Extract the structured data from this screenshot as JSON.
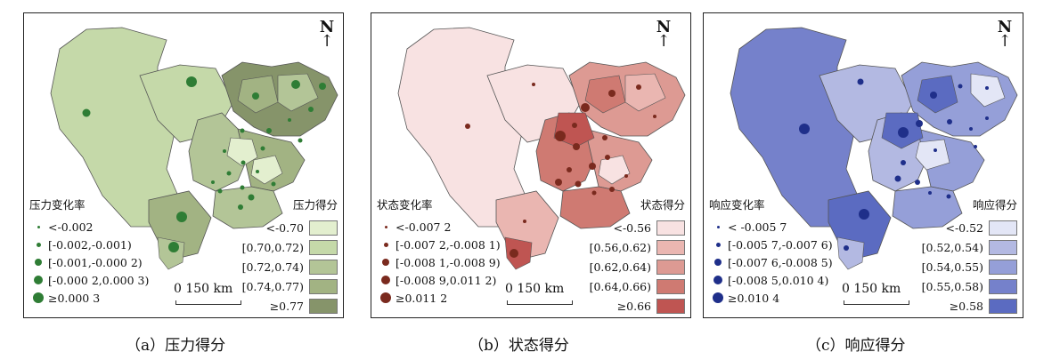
{
  "panels": [
    {
      "id": "a",
      "caption": "（a）压力得分",
      "north_label": "N",
      "scale_label": "0  150 km",
      "symbol_legend": {
        "title": "压力变化率",
        "items": [
          "<-0.002",
          "[-0.002,-0.001)",
          "[-0.001,-0.000 2)",
          "[-0.000 2,0.000 3)",
          "≥0.000 3"
        ]
      },
      "class_legend": {
        "title": "压力得分",
        "items": [
          "<-0.70",
          "[0.70,0.72)",
          "[0.72,0.74)",
          "[0.74,0.77)",
          "≥0.77"
        ],
        "colors": [
          "#e3efcf",
          "#c5d9a9",
          "#b3c597",
          "#a2b383",
          "#86946a"
        ]
      },
      "symbol_color": "#2f7d35"
    },
    {
      "id": "b",
      "caption": "（b）状态得分",
      "north_label": "N",
      "scale_label": "0  150 km",
      "symbol_legend": {
        "title": "状态变化率",
        "items": [
          "<-0.007 2",
          "[-0.007 2,-0.008 1)",
          "[-0.008 1,-0.008 9)",
          "[-0.008 9,0.011 2)",
          "≥0.011 2"
        ]
      },
      "class_legend": {
        "title": "状态得分",
        "items": [
          "<-0.56",
          "[0.56,0.62)",
          "[0.62,0.64)",
          "[0.64,0.66)",
          "≥0.66"
        ],
        "colors": [
          "#f8e2e2",
          "#eab6b1",
          "#dd9a93",
          "#cf7a72",
          "#bf5552"
        ]
      },
      "symbol_color": "#7a2a1e"
    },
    {
      "id": "c",
      "caption": "（c）响应得分",
      "north_label": "N",
      "scale_label": "0  150 km",
      "symbol_legend": {
        "title": "响应变化率",
        "items": [
          "< -0.005 7",
          "[-0.005 7,-0.007 6)",
          "[-0.007 6,-0.008 5)",
          "[-0.008 5,0.010 4)",
          "≥0.010 4"
        ]
      },
      "class_legend": {
        "title": "响应得分",
        "items": [
          "<-0.52",
          "[0.52,0.54)",
          "[0.54,0.55)",
          "[0.55,0.58)",
          "≥0.58"
        ],
        "colors": [
          "#e3e6f6",
          "#b3b9e2",
          "#959fd8",
          "#7581cb",
          "#5b6bc1"
        ]
      },
      "symbol_color": "#1f2f8a"
    }
  ]
}
